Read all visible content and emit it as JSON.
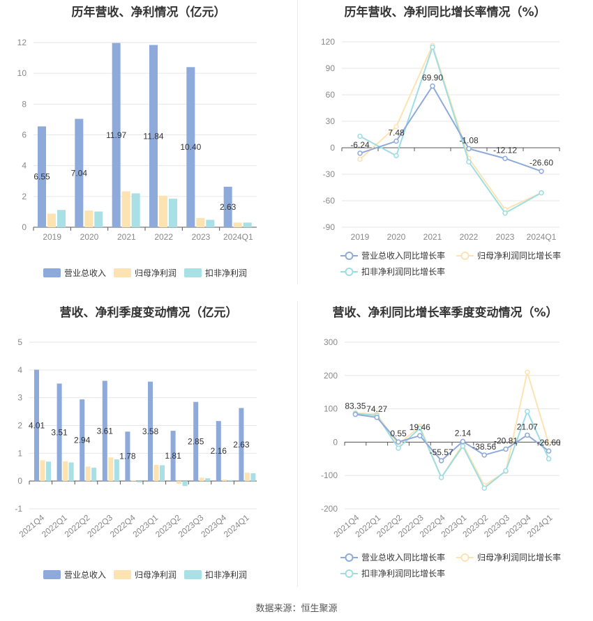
{
  "source": "数据来源：恒生聚源",
  "colors": {
    "revenue": "#8eaadb",
    "net_profit": "#fde3b1",
    "deducted": "#a8e0e6",
    "revenue_line": "#8eaadb",
    "net_line": "#fde3b1",
    "deducted_line": "#9ddde4",
    "axis_text": "#888888",
    "label_text": "#333333",
    "grid": "#e6e6e6"
  },
  "chart_data": [
    {
      "type": "bar",
      "title": "历年营收、净利情况（亿元）",
      "categories": [
        "2019",
        "2020",
        "2021",
        "2022",
        "2023",
        "2024Q1"
      ],
      "yticks": [
        0,
        2,
        4,
        6,
        8,
        10,
        12
      ],
      "ylim": [
        0,
        12
      ],
      "series": [
        {
          "name": "营业总收入",
          "values": [
            6.55,
            7.04,
            11.97,
            11.84,
            10.4,
            2.63
          ],
          "labels": [
            "6.55",
            "7.04",
            "11.97",
            "11.84",
            "10.40",
            "2.63"
          ]
        },
        {
          "name": "归母净利润",
          "values": [
            0.88,
            1.08,
            2.33,
            2.05,
            0.6,
            0.3
          ]
        },
        {
          "name": "扣非净利润",
          "values": [
            1.12,
            1.02,
            2.2,
            1.85,
            0.48,
            0.3
          ]
        }
      ],
      "legend": "bottom"
    },
    {
      "type": "line",
      "title": "历年营收、净利同比增长率情况（%）",
      "categories": [
        "2019",
        "2020",
        "2021",
        "2022",
        "2023",
        "2024Q1"
      ],
      "yticks": [
        -90,
        -60,
        -30,
        0,
        30,
        60,
        90,
        120
      ],
      "ylim": [
        -90,
        120
      ],
      "series": [
        {
          "name": "营业总收入同比增长率",
          "values": [
            -6.24,
            7.48,
            69.9,
            -1.08,
            -12.12,
            -26.6
          ],
          "labels": [
            "-6.24",
            "7.48",
            "69.90",
            "-1.08",
            "-12.12",
            "-26.60"
          ]
        },
        {
          "name": "归母净利润同比增长率",
          "values": [
            -13,
            24,
            116,
            -12,
            -70,
            -51
          ]
        },
        {
          "name": "扣非净利润同比增长率",
          "values": [
            13,
            -9,
            114,
            -16,
            -74,
            -51
          ]
        }
      ],
      "legend": "bottom"
    },
    {
      "type": "bar",
      "title": "营收、净利季度变动情况（亿元）",
      "categories": [
        "2021Q4",
        "2022Q1",
        "2022Q2",
        "2022Q3",
        "2022Q4",
        "2023Q1",
        "2023Q2",
        "2023Q3",
        "2023Q4",
        "2024Q1"
      ],
      "yticks": [
        -1,
        0,
        1,
        2,
        3,
        4,
        5
      ],
      "ylim": [
        -1,
        5
      ],
      "series": [
        {
          "name": "营业总收入",
          "values": [
            4.01,
            3.51,
            2.94,
            3.61,
            1.78,
            3.58,
            1.81,
            2.85,
            2.16,
            2.63
          ],
          "labels": [
            "4.01",
            "3.51",
            "2.94",
            "3.61",
            "1.78",
            "3.58",
            "1.81",
            "2.85",
            "2.16",
            "2.63"
          ]
        },
        {
          "name": "归母净利润",
          "values": [
            0.75,
            0.71,
            0.52,
            0.85,
            0.02,
            0.58,
            -0.1,
            0.12,
            0.05,
            0.3
          ]
        },
        {
          "name": "扣非净利润",
          "values": [
            0.7,
            0.67,
            0.48,
            0.78,
            -0.05,
            0.57,
            -0.18,
            0.1,
            0.03,
            0.28
          ]
        }
      ],
      "legend": "bottom"
    },
    {
      "type": "line",
      "title": "营收、净利同比增长率季度变动情况（%）",
      "categories": [
        "2021Q4",
        "2022Q1",
        "2022Q2",
        "2022Q3",
        "2022Q4",
        "2023Q1",
        "2023Q2",
        "2023Q3",
        "2023Q4",
        "2024Q1"
      ],
      "yticks": [
        -200,
        -100,
        0,
        100,
        200,
        300
      ],
      "ylim": [
        -200,
        300
      ],
      "series": [
        {
          "name": "营业总收入同比增长率",
          "values": [
            83.35,
            74.27,
            0.55,
            19.46,
            -55.57,
            2.14,
            -38.56,
            -20.81,
            21.07,
            -26.6
          ],
          "labels": [
            "83.35",
            "74.27",
            "0.55",
            "19.46",
            "-55.57",
            "2.14",
            "-38.56",
            "-20.81",
            "21.07",
            "-26.60"
          ]
        },
        {
          "name": "归母净利润同比增长率",
          "values": [
            88,
            84,
            -8,
            48,
            -106,
            -6,
            -130,
            -88,
            210,
            -5
          ]
        },
        {
          "name": "扣非净利润同比增长率",
          "values": [
            86,
            80,
            -18,
            42,
            -106,
            -12,
            -138,
            -86,
            92,
            -50
          ]
        }
      ],
      "legend": "bottom"
    }
  ]
}
